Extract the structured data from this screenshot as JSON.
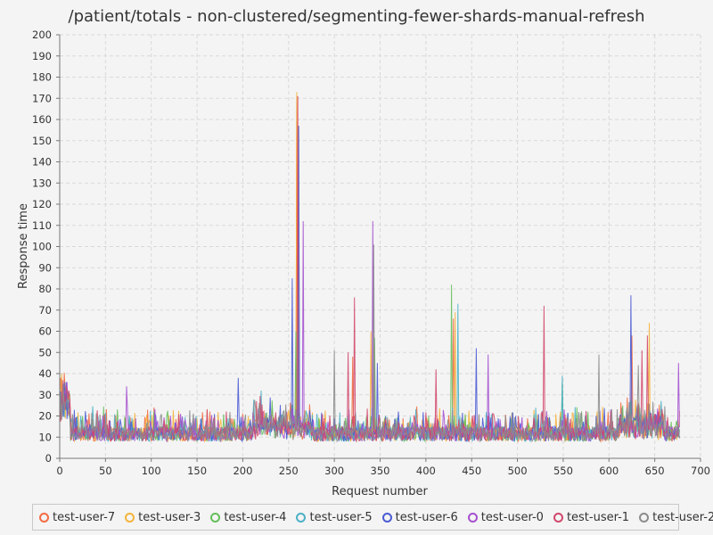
{
  "chart_data": {
    "type": "line",
    "title": "/patient/totals - non-clustered/segmenting-fewer-shards-manual-refresh",
    "xlabel": "Request number",
    "ylabel": "Response time",
    "xlim": [
      0,
      700
    ],
    "ylim": [
      0,
      200
    ],
    "xticks": [
      0,
      50,
      100,
      150,
      200,
      250,
      300,
      350,
      400,
      450,
      500,
      550,
      600,
      650,
      700
    ],
    "yticks": [
      0,
      10,
      20,
      30,
      40,
      50,
      60,
      70,
      80,
      90,
      100,
      110,
      120,
      130,
      140,
      150,
      160,
      170,
      180,
      190,
      200
    ],
    "grid": true,
    "legend_position": "bottom",
    "series_length": 678,
    "series": [
      {
        "name": "test-user-7",
        "color": "#f26c43",
        "peaks": [
          [
            1,
            38
          ],
          [
            259,
            171
          ],
          [
            320,
            48
          ],
          [
            343,
            54
          ],
          [
            430,
            66
          ],
          [
            625,
            58
          ]
        ]
      },
      {
        "name": "test-user-3",
        "color": "#f5b33b",
        "peaks": [
          [
            2,
            40
          ],
          [
            259,
            173
          ],
          [
            340,
            60
          ],
          [
            432,
            69
          ],
          [
            644,
            64
          ]
        ]
      },
      {
        "name": "test-user-4",
        "color": "#65bf5c",
        "peaks": [
          [
            5,
            33
          ],
          [
            258,
            60
          ],
          [
            344,
            57
          ],
          [
            428,
            82
          ],
          [
            549,
            36
          ]
        ]
      },
      {
        "name": "test-user-5",
        "color": "#4db1c6",
        "peaks": [
          [
            6,
            33
          ],
          [
            220,
            32
          ],
          [
            261,
            157
          ],
          [
            435,
            73
          ],
          [
            549,
            39
          ]
        ]
      },
      {
        "name": "test-user-6",
        "color": "#4a5bd4",
        "peaks": [
          [
            7,
            36
          ],
          [
            195,
            38
          ],
          [
            254,
            85
          ],
          [
            261,
            157
          ],
          [
            347,
            45
          ],
          [
            455,
            52
          ],
          [
            624,
            77
          ]
        ]
      },
      {
        "name": "test-user-0",
        "color": "#a451cf",
        "peaks": [
          [
            8,
            36
          ],
          [
            73,
            34
          ],
          [
            266,
            112
          ],
          [
            342,
            112
          ],
          [
            468,
            49
          ],
          [
            676,
            45
          ]
        ]
      },
      {
        "name": "test-user-1",
        "color": "#d1476c",
        "peaks": [
          [
            3,
            37
          ],
          [
            260,
            171
          ],
          [
            315,
            50
          ],
          [
            322,
            76
          ],
          [
            411,
            42
          ],
          [
            529,
            72
          ],
          [
            636,
            51
          ],
          [
            642,
            58
          ]
        ]
      },
      {
        "name": "test-user-2",
        "color": "#8c8c8c",
        "peaks": [
          [
            4,
            35
          ],
          [
            300,
            51
          ],
          [
            343,
            101
          ],
          [
            589,
            49
          ],
          [
            632,
            44
          ]
        ]
      }
    ]
  }
}
